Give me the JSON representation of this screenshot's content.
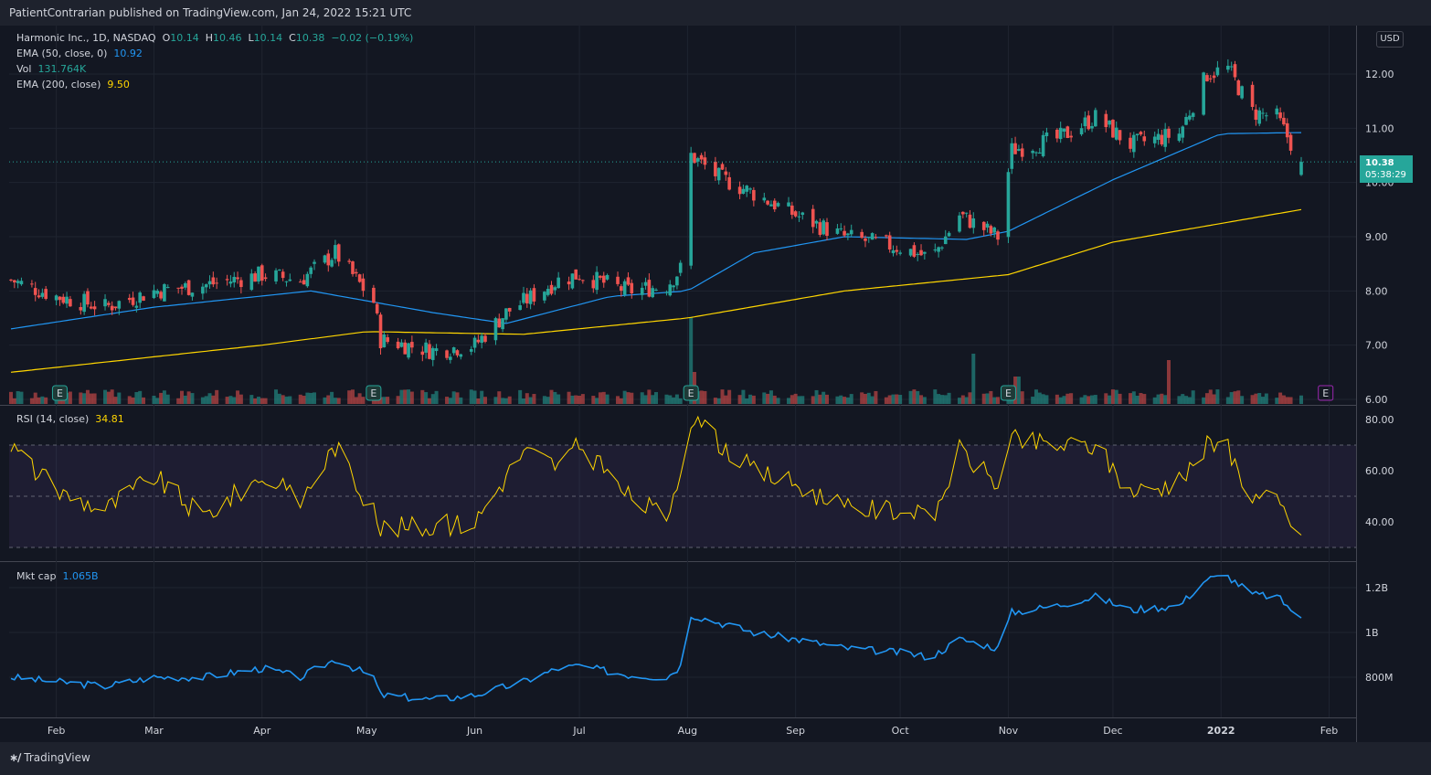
{
  "header": {
    "publish_text": "PatientContrarian published on TradingView.com, Jan 24, 2022 15:21 UTC"
  },
  "legend": {
    "symbol": "Harmonic Inc., 1D, NASDAQ",
    "o_label": "O",
    "o_value": "10.14",
    "h_label": "H",
    "h_value": "10.46",
    "l_label": "L",
    "l_value": "10.14",
    "c_label": "C",
    "c_value": "10.38",
    "change": "−0.02 (−0.19%)",
    "ema50_label": "EMA (50, close, 0)",
    "ema50_value": "10.92",
    "vol_label": "Vol",
    "vol_value": "131.764K",
    "ema200_label": "EMA (200, close)",
    "ema200_value": "9.50"
  },
  "rsi_legend": {
    "label": "RSI (14, close)",
    "value": "34.81"
  },
  "mcap_legend": {
    "label": "Mkt cap",
    "value": "1.065B"
  },
  "currency_button": "USD",
  "price_tag": {
    "price": "10.38",
    "countdown": "05:38:29"
  },
  "footer": {
    "brand": "TradingView"
  },
  "earnings_marker": "E",
  "colors": {
    "up": "#26a69a",
    "down": "#ef5350",
    "ema50": "#2196f3",
    "ema200": "#ffd600",
    "rsi": "#ffd600",
    "mcap": "#2196f3",
    "earnings_next": "#9c27b0"
  },
  "chart_data": [
    {
      "type": "candlestick",
      "title": "Harmonic Inc., 1D, NASDAQ",
      "x_ticks": [
        "Feb",
        "Mar",
        "Apr",
        "May",
        "Jun",
        "Jul",
        "Aug",
        "Sep",
        "Oct",
        "Nov",
        "Dec",
        "2022",
        "Feb"
      ],
      "y_ticks": [
        "12.00",
        "11.00",
        "10.00",
        "9.00",
        "8.00",
        "7.00",
        "6.00"
      ],
      "ylim": [
        6.0,
        12.6
      ],
      "price_anchors": [
        {
          "date": "2021-01-19",
          "close": 8.2
        },
        {
          "date": "2021-02-01",
          "close": 7.9
        },
        {
          "date": "2021-02-15",
          "close": 7.7
        },
        {
          "date": "2021-03-01",
          "close": 8.0
        },
        {
          "date": "2021-03-15",
          "close": 8.1
        },
        {
          "date": "2021-04-01",
          "close": 8.3
        },
        {
          "date": "2021-04-12",
          "close": 8.2
        },
        {
          "date": "2021-04-22",
          "close": 8.7
        },
        {
          "date": "2021-05-03",
          "close": 7.8
        },
        {
          "date": "2021-05-05",
          "close": 7.1
        },
        {
          "date": "2021-05-20",
          "close": 6.9
        },
        {
          "date": "2021-06-01",
          "close": 7.0
        },
        {
          "date": "2021-06-10",
          "close": 7.6
        },
        {
          "date": "2021-06-25",
          "close": 8.2
        },
        {
          "date": "2021-07-01",
          "close": 8.3
        },
        {
          "date": "2021-07-15",
          "close": 8.0
        },
        {
          "date": "2021-07-26",
          "close": 8.1
        },
        {
          "date": "2021-07-30",
          "close": 8.4
        },
        {
          "date": "2021-08-02",
          "close": 10.5
        },
        {
          "date": "2021-08-10",
          "close": 10.1
        },
        {
          "date": "2021-08-20",
          "close": 9.8
        },
        {
          "date": "2021-09-01",
          "close": 9.4
        },
        {
          "date": "2021-09-15",
          "close": 9.0
        },
        {
          "date": "2021-10-01",
          "close": 8.8
        },
        {
          "date": "2021-10-10",
          "close": 8.6
        },
        {
          "date": "2021-10-18",
          "close": 9.4
        },
        {
          "date": "2021-10-29",
          "close": 9.0
        },
        {
          "date": "2021-11-02",
          "close": 10.6
        },
        {
          "date": "2021-11-15",
          "close": 10.8
        },
        {
          "date": "2021-11-26",
          "close": 11.2
        },
        {
          "date": "2021-12-06",
          "close": 10.7
        },
        {
          "date": "2021-12-20",
          "close": 10.9
        },
        {
          "date": "2021-12-28",
          "close": 12.0
        },
        {
          "date": "2022-01-03",
          "close": 12.1
        },
        {
          "date": "2022-01-10",
          "close": 11.3
        },
        {
          "date": "2022-01-17",
          "close": 11.2
        },
        {
          "date": "2022-01-24",
          "close": 10.38
        }
      ],
      "ema50_anchors": [
        {
          "date": "2021-01-19",
          "value": 7.3
        },
        {
          "date": "2021-03-01",
          "value": 7.7
        },
        {
          "date": "2021-04-15",
          "value": 8.0
        },
        {
          "date": "2021-05-20",
          "value": 7.6
        },
        {
          "date": "2021-06-10",
          "value": 7.4
        },
        {
          "date": "2021-07-10",
          "value": 7.9
        },
        {
          "date": "2021-08-01",
          "value": 8.0
        },
        {
          "date": "2021-08-20",
          "value": 8.7
        },
        {
          "date": "2021-09-15",
          "value": 9.0
        },
        {
          "date": "2021-10-20",
          "value": 8.95
        },
        {
          "date": "2021-11-01",
          "value": 9.1
        },
        {
          "date": "2021-12-01",
          "value": 10.05
        },
        {
          "date": "2022-01-01",
          "value": 10.9
        },
        {
          "date": "2022-01-24",
          "value": 10.92
        }
      ],
      "ema200_anchors": [
        {
          "date": "2021-01-19",
          "value": 6.5
        },
        {
          "date": "2021-04-01",
          "value": 7.0
        },
        {
          "date": "2021-05-01",
          "value": 7.25
        },
        {
          "date": "2021-06-15",
          "value": 7.2
        },
        {
          "date": "2021-08-01",
          "value": 7.5
        },
        {
          "date": "2021-09-15",
          "value": 8.0
        },
        {
          "date": "2021-11-01",
          "value": 8.3
        },
        {
          "date": "2021-12-01",
          "value": 8.9
        },
        {
          "date": "2022-01-24",
          "value": 9.5
        }
      ],
      "volume_note": "Vol 131.764K"
    },
    {
      "type": "line",
      "title": "RSI (14, close)",
      "y_ticks": [
        "80.00",
        "60.00",
        "40.00"
      ],
      "ylim": [
        25,
        82
      ],
      "bands": [
        30,
        50,
        70
      ],
      "anchors": [
        {
          "date": "2021-01-19",
          "value": 70
        },
        {
          "date": "2021-02-01",
          "value": 52
        },
        {
          "date": "2021-02-15",
          "value": 45
        },
        {
          "date": "2021-03-01",
          "value": 58
        },
        {
          "date": "2021-03-15",
          "value": 42
        },
        {
          "date": "2021-04-01",
          "value": 58
        },
        {
          "date": "2021-04-12",
          "value": 48
        },
        {
          "date": "2021-04-22",
          "value": 70
        },
        {
          "date": "2021-05-01",
          "value": 48
        },
        {
          "date": "2021-05-05",
          "value": 38
        },
        {
          "date": "2021-05-20",
          "value": 38
        },
        {
          "date": "2021-06-01",
          "value": 40
        },
        {
          "date": "2021-06-15",
          "value": 68
        },
        {
          "date": "2021-06-25",
          "value": 62
        },
        {
          "date": "2021-07-01",
          "value": 70
        },
        {
          "date": "2021-07-15",
          "value": 50
        },
        {
          "date": "2021-07-26",
          "value": 42
        },
        {
          "date": "2021-07-30",
          "value": 62
        },
        {
          "date": "2021-08-02",
          "value": 80
        },
        {
          "date": "2021-08-20",
          "value": 60
        },
        {
          "date": "2021-09-01",
          "value": 55
        },
        {
          "date": "2021-09-15",
          "value": 45
        },
        {
          "date": "2021-10-01",
          "value": 45
        },
        {
          "date": "2021-10-10",
          "value": 40
        },
        {
          "date": "2021-10-18",
          "value": 68
        },
        {
          "date": "2021-10-29",
          "value": 55
        },
        {
          "date": "2021-11-02",
          "value": 72
        },
        {
          "date": "2021-11-15",
          "value": 70
        },
        {
          "date": "2021-11-26",
          "value": 70
        },
        {
          "date": "2021-12-06",
          "value": 52
        },
        {
          "date": "2021-12-20",
          "value": 55
        },
        {
          "date": "2021-12-28",
          "value": 70
        },
        {
          "date": "2022-01-03",
          "value": 68
        },
        {
          "date": "2022-01-10",
          "value": 50
        },
        {
          "date": "2022-01-17",
          "value": 48
        },
        {
          "date": "2022-01-24",
          "value": 34.81
        }
      ]
    },
    {
      "type": "line",
      "title": "Mkt cap",
      "y_ticks": [
        "1.2B",
        "1B",
        "800M"
      ],
      "ylim": [
        0.66,
        1.3
      ],
      "units": "billion USD",
      "anchors": [
        {
          "date": "2021-01-19",
          "value": 0.8
        },
        {
          "date": "2021-02-01",
          "value": 0.78
        },
        {
          "date": "2021-02-15",
          "value": 0.76
        },
        {
          "date": "2021-03-01",
          "value": 0.8
        },
        {
          "date": "2021-03-15",
          "value": 0.8
        },
        {
          "date": "2021-04-01",
          "value": 0.84
        },
        {
          "date": "2021-04-12",
          "value": 0.8
        },
        {
          "date": "2021-04-22",
          "value": 0.88
        },
        {
          "date": "2021-05-03",
          "value": 0.8
        },
        {
          "date": "2021-05-05",
          "value": 0.72
        },
        {
          "date": "2021-05-20",
          "value": 0.7
        },
        {
          "date": "2021-06-01",
          "value": 0.72
        },
        {
          "date": "2021-06-15",
          "value": 0.78
        },
        {
          "date": "2021-06-25",
          "value": 0.84
        },
        {
          "date": "2021-07-01",
          "value": 0.85
        },
        {
          "date": "2021-07-15",
          "value": 0.81
        },
        {
          "date": "2021-07-26",
          "value": 0.8
        },
        {
          "date": "2021-07-30",
          "value": 0.85
        },
        {
          "date": "2021-08-02",
          "value": 1.08
        },
        {
          "date": "2021-08-20",
          "value": 1.0
        },
        {
          "date": "2021-09-01",
          "value": 0.97
        },
        {
          "date": "2021-09-15",
          "value": 0.93
        },
        {
          "date": "2021-10-01",
          "value": 0.91
        },
        {
          "date": "2021-10-10",
          "value": 0.89
        },
        {
          "date": "2021-10-18",
          "value": 0.97
        },
        {
          "date": "2021-10-29",
          "value": 0.93
        },
        {
          "date": "2021-11-02",
          "value": 1.09
        },
        {
          "date": "2021-11-15",
          "value": 1.12
        },
        {
          "date": "2021-11-26",
          "value": 1.16
        },
        {
          "date": "2021-12-06",
          "value": 1.1
        },
        {
          "date": "2021-12-20",
          "value": 1.12
        },
        {
          "date": "2021-12-28",
          "value": 1.24
        },
        {
          "date": "2022-01-03",
          "value": 1.25
        },
        {
          "date": "2022-01-10",
          "value": 1.17
        },
        {
          "date": "2022-01-17",
          "value": 1.16
        },
        {
          "date": "2022-01-24",
          "value": 1.065
        }
      ]
    }
  ]
}
